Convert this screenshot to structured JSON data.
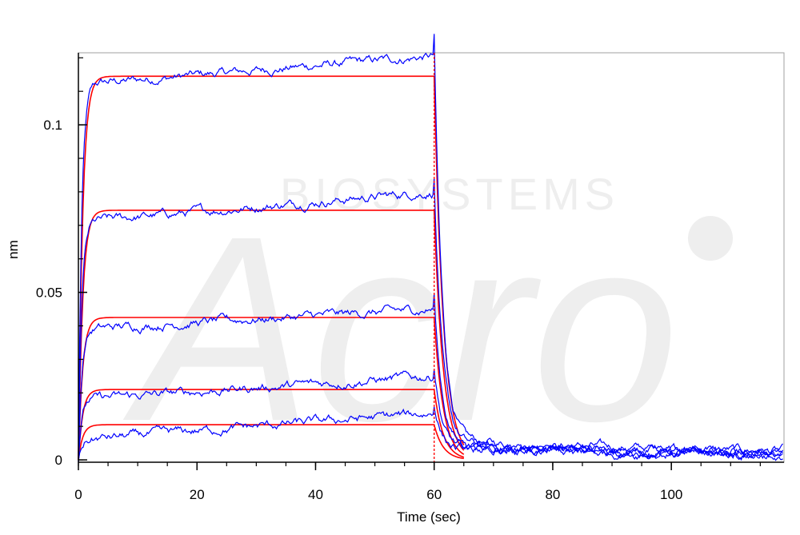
{
  "chart_data": {
    "type": "line",
    "xlabel": "Time (sec)",
    "ylabel": "nm",
    "xlim": [
      0,
      119
    ],
    "ylim": [
      -0.0007,
      0.1215
    ],
    "x_ticks": [
      0,
      20,
      40,
      60,
      80,
      100
    ],
    "x_tick_labels": [
      "0",
      "20",
      "40",
      "60",
      "80",
      "100"
    ],
    "y_ticks": [
      0,
      0.05,
      0.1
    ],
    "y_tick_labels": [
      "0",
      "0.05",
      "0.1"
    ],
    "grid": false,
    "legend": "none",
    "association_end": 60,
    "fit_end": 65,
    "kon": 1.4,
    "koff": 0.65,
    "series": [
      {
        "role": "measured",
        "color": "#0000ff",
        "start": 0.112,
        "end": 0.1205,
        "plateau_fit": 0.1145,
        "tail": 0.0055
      },
      {
        "role": "measured",
        "color": "#0000ff",
        "start": 0.071,
        "end": 0.08,
        "plateau_fit": 0.0745,
        "tail": 0.0045
      },
      {
        "role": "measured",
        "color": "#0000ff",
        "start": 0.039,
        "end": 0.045,
        "plateau_fit": 0.0425,
        "tail": 0.004
      },
      {
        "role": "measured",
        "color": "#0000ff",
        "start": 0.018,
        "end": 0.025,
        "plateau_fit": 0.021,
        "tail": 0.0035
      },
      {
        "role": "measured",
        "color": "#0000ff",
        "start": 0.006,
        "end": 0.014,
        "plateau_fit": 0.0105,
        "tail": 0.003
      }
    ],
    "fit_color": "#ff0000",
    "phase_line_color": "#ff0000"
  },
  "watermark": {
    "brand": "Acro",
    "subtitle": "BIOSYSTEMS"
  }
}
